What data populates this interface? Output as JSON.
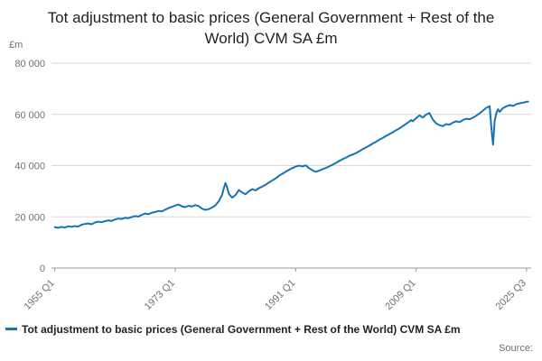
{
  "title": "Tot adjustment to basic prices (General Government + Rest of the World) CVM SA £m",
  "y_axis_unit": "£m",
  "legend": {
    "label": "Tot adjustment to basic prices (General Government + Rest of the World) CVM SA £m"
  },
  "source_label": "Source:",
  "colors": {
    "line": "#1673b5",
    "grid": "#d9d9d9",
    "axis": "#999999",
    "tick_text": "#707070"
  },
  "chart_data": {
    "type": "line",
    "title": "Tot adjustment to basic prices (General Government + Rest of the World) CVM SA £m",
    "xlabel": "",
    "ylabel": "£m",
    "ylim": [
      0,
      80000
    ],
    "xlim": [
      1954.5,
      2026.2
    ],
    "grid": "horizontal",
    "legend_position": "bottom",
    "yticks": [
      {
        "value": 0,
        "label": "0"
      },
      {
        "value": 20000,
        "label": "20 000"
      },
      {
        "value": 40000,
        "label": "40 000"
      },
      {
        "value": 60000,
        "label": "60 000"
      },
      {
        "value": 80000,
        "label": "80 000"
      }
    ],
    "xticks": [
      {
        "value": 1955.0,
        "label": "1955 Q1"
      },
      {
        "value": 1973.0,
        "label": "1973 Q1"
      },
      {
        "value": 1991.0,
        "label": "1991 Q1"
      },
      {
        "value": 2009.0,
        "label": "2009 Q1"
      },
      {
        "value": 2025.5,
        "label": "2025 Q3"
      }
    ],
    "series": [
      {
        "name": "Tot adjustment to basic prices (General Government + Rest of the World) CVM SA £m",
        "points": [
          [
            1955.0,
            16000
          ],
          [
            1955.5,
            15700
          ],
          [
            1956.0,
            16100
          ],
          [
            1956.5,
            15800
          ],
          [
            1957.0,
            16300
          ],
          [
            1957.5,
            16100
          ],
          [
            1958.0,
            16400
          ],
          [
            1958.5,
            16200
          ],
          [
            1959.0,
            16900
          ],
          [
            1959.5,
            17200
          ],
          [
            1960.0,
            17400
          ],
          [
            1960.5,
            17100
          ],
          [
            1961.0,
            17800
          ],
          [
            1961.5,
            18100
          ],
          [
            1962.0,
            17900
          ],
          [
            1962.5,
            18300
          ],
          [
            1963.0,
            18600
          ],
          [
            1963.5,
            18400
          ],
          [
            1964.0,
            19000
          ],
          [
            1964.5,
            19300
          ],
          [
            1965.0,
            19200
          ],
          [
            1965.5,
            19600
          ],
          [
            1966.0,
            19500
          ],
          [
            1966.5,
            19900
          ],
          [
            1967.0,
            20300
          ],
          [
            1967.5,
            20100
          ],
          [
            1968.0,
            20800
          ],
          [
            1968.5,
            21300
          ],
          [
            1969.0,
            21000
          ],
          [
            1969.5,
            21600
          ],
          [
            1970.0,
            21900
          ],
          [
            1970.5,
            22300
          ],
          [
            1971.0,
            22100
          ],
          [
            1971.5,
            22800
          ],
          [
            1972.0,
            23400
          ],
          [
            1972.5,
            23900
          ],
          [
            1973.0,
            24400
          ],
          [
            1973.5,
            24800
          ],
          [
            1974.0,
            24100
          ],
          [
            1974.5,
            23800
          ],
          [
            1975.0,
            24300
          ],
          [
            1975.5,
            24000
          ],
          [
            1976.0,
            24600
          ],
          [
            1976.5,
            24200
          ],
          [
            1977.0,
            23200
          ],
          [
            1977.5,
            22700
          ],
          [
            1978.0,
            23000
          ],
          [
            1978.5,
            23600
          ],
          [
            1979.0,
            24500
          ],
          [
            1979.5,
            26000
          ],
          [
            1980.0,
            28500
          ],
          [
            1980.25,
            31000
          ],
          [
            1980.5,
            33200
          ],
          [
            1980.75,
            31500
          ],
          [
            1981.0,
            29000
          ],
          [
            1981.5,
            27500
          ],
          [
            1982.0,
            28500
          ],
          [
            1982.5,
            30500
          ],
          [
            1983.0,
            29500
          ],
          [
            1983.5,
            28800
          ],
          [
            1984.0,
            30000
          ],
          [
            1984.5,
            30800
          ],
          [
            1985.0,
            30300
          ],
          [
            1985.5,
            31200
          ],
          [
            1986.0,
            31800
          ],
          [
            1986.5,
            32500
          ],
          [
            1987.0,
            33400
          ],
          [
            1987.5,
            34200
          ],
          [
            1988.0,
            35000
          ],
          [
            1988.5,
            36000
          ],
          [
            1989.0,
            36800
          ],
          [
            1989.5,
            37600
          ],
          [
            1990.0,
            38300
          ],
          [
            1990.5,
            39000
          ],
          [
            1991.0,
            39600
          ],
          [
            1991.5,
            40000
          ],
          [
            1992.0,
            39700
          ],
          [
            1992.5,
            40100
          ],
          [
            1993.0,
            39000
          ],
          [
            1993.5,
            38200
          ],
          [
            1994.0,
            37600
          ],
          [
            1994.5,
            38000
          ],
          [
            1995.0,
            38600
          ],
          [
            1995.5,
            39100
          ],
          [
            1996.0,
            39700
          ],
          [
            1996.5,
            40300
          ],
          [
            1997.0,
            41000
          ],
          [
            1997.5,
            41800
          ],
          [
            1998.0,
            42500
          ],
          [
            1998.5,
            43100
          ],
          [
            1999.0,
            43800
          ],
          [
            1999.5,
            44300
          ],
          [
            2000.0,
            44900
          ],
          [
            2000.5,
            45600
          ],
          [
            2001.0,
            46400
          ],
          [
            2001.5,
            47100
          ],
          [
            2002.0,
            47800
          ],
          [
            2002.5,
            48600
          ],
          [
            2003.0,
            49300
          ],
          [
            2003.5,
            50100
          ],
          [
            2004.0,
            50800
          ],
          [
            2004.5,
            51600
          ],
          [
            2005.0,
            52300
          ],
          [
            2005.5,
            53000
          ],
          [
            2006.0,
            53800
          ],
          [
            2006.5,
            54500
          ],
          [
            2007.0,
            55400
          ],
          [
            2007.5,
            56300
          ],
          [
            2008.0,
            57200
          ],
          [
            2008.25,
            57800
          ],
          [
            2008.5,
            57300
          ],
          [
            2009.0,
            58500
          ],
          [
            2009.5,
            59600
          ],
          [
            2010.0,
            58800
          ],
          [
            2010.5,
            59900
          ],
          [
            2011.0,
            60500
          ],
          [
            2011.5,
            58000
          ],
          [
            2012.0,
            56500
          ],
          [
            2012.5,
            55800
          ],
          [
            2013.0,
            55400
          ],
          [
            2013.5,
            56200
          ],
          [
            2014.0,
            56000
          ],
          [
            2014.5,
            56800
          ],
          [
            2015.0,
            57300
          ],
          [
            2015.5,
            57000
          ],
          [
            2016.0,
            57800
          ],
          [
            2016.5,
            58300
          ],
          [
            2017.0,
            58100
          ],
          [
            2017.5,
            58700
          ],
          [
            2018.0,
            59500
          ],
          [
            2018.5,
            60400
          ],
          [
            2019.0,
            61500
          ],
          [
            2019.5,
            62600
          ],
          [
            2020.0,
            63200
          ],
          [
            2020.25,
            55000
          ],
          [
            2020.5,
            48200
          ],
          [
            2020.75,
            57500
          ],
          [
            2021.0,
            60500
          ],
          [
            2021.25,
            62000
          ],
          [
            2021.5,
            61000
          ],
          [
            2022.0,
            62500
          ],
          [
            2022.5,
            63200
          ],
          [
            2023.0,
            63600
          ],
          [
            2023.5,
            63300
          ],
          [
            2024.0,
            64000
          ],
          [
            2024.5,
            64300
          ],
          [
            2025.0,
            64600
          ],
          [
            2025.5,
            64900
          ],
          [
            2025.75,
            65000
          ]
        ]
      }
    ]
  }
}
